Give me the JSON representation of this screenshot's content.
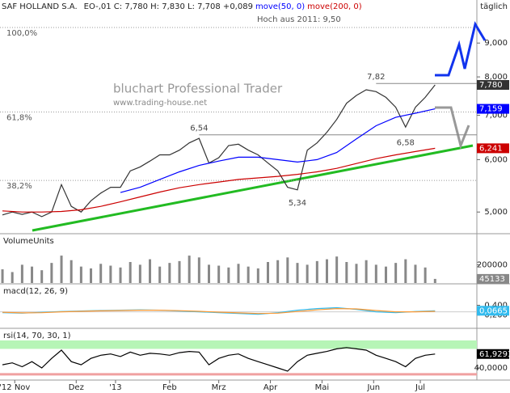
{
  "chart_data": [
    {
      "type": "line",
      "title": "SAF HOLLAND S.A.",
      "quote": "EO-,01 C: 7,780 H: 7,830 L: 7,708 +0,089",
      "period": "täglich",
      "subtitle": "Hoch aus 2011: 9,50",
      "watermark": "bluchart Professional Trader",
      "watermark_url": "www.trading-house.net",
      "log": true,
      "xlim": [
        -1,
        193
      ],
      "ylim": [
        4.65,
        10.05
      ],
      "yticks": [
        {
          "value": 9,
          "label": "9,000"
        },
        {
          "value": 8,
          "label": "8,000"
        },
        {
          "value": 7,
          "label": "7,000"
        },
        {
          "value": 6,
          "label": "6,000"
        },
        {
          "value": 5,
          "label": "5,000"
        }
      ],
      "levels": [
        {
          "value": 9.5,
          "label": "100,0%"
        },
        {
          "value": 7.08,
          "label": "61,8%"
        },
        {
          "value": 5.58,
          "label": "38,2%"
        }
      ],
      "annotations": [
        {
          "x": 152,
          "value": 7.82,
          "label": "7,82",
          "position": "above",
          "hline": true
        },
        {
          "x": 80,
          "value": 6.54,
          "label": "6,54",
          "position": "above",
          "hline": true
        },
        {
          "x": 164,
          "value": 6.58,
          "label": "6,58",
          "position": "below",
          "hline": false
        },
        {
          "x": 120,
          "value": 5.34,
          "label": "5,34",
          "position": "below",
          "hline": false
        }
      ],
      "series": [
        {
          "color": "#333333",
          "x": [
            0,
            4,
            8,
            12,
            16,
            20,
            24,
            28,
            32,
            36,
            40,
            44,
            48,
            52,
            56,
            60,
            64,
            68,
            72,
            76,
            80,
            84,
            88,
            92,
            96,
            100,
            104,
            108,
            112,
            116,
            120,
            124,
            128,
            132,
            136,
            140,
            144,
            148,
            152,
            156,
            160,
            164,
            168,
            172,
            176
          ],
          "values": [
            4.95,
            5.0,
            4.96,
            5.0,
            4.92,
            5.0,
            5.5,
            5.1,
            5.0,
            5.2,
            5.34,
            5.45,
            5.45,
            5.77,
            5.85,
            5.97,
            6.1,
            6.1,
            6.2,
            6.36,
            6.46,
            5.93,
            6.04,
            6.3,
            6.33,
            6.2,
            6.1,
            5.93,
            5.77,
            5.45,
            5.4,
            6.2,
            6.36,
            6.6,
            6.9,
            7.3,
            7.5,
            7.65,
            7.6,
            7.45,
            7.2,
            6.72,
            7.2,
            7.45,
            7.78
          ],
          "last": {
            "value": 7.78,
            "label": "7,780"
          }
        },
        {
          "name": "move(50, 0)",
          "color": "#0000ff",
          "x": [
            48,
            56,
            64,
            72,
            80,
            88,
            96,
            104,
            112,
            120,
            128,
            136,
            144,
            152,
            160,
            168,
            176
          ],
          "values": [
            5.35,
            5.45,
            5.6,
            5.75,
            5.88,
            5.97,
            6.05,
            6.05,
            6.0,
            5.95,
            6.0,
            6.15,
            6.45,
            6.75,
            6.95,
            7.05,
            7.159
          ],
          "last": {
            "value": 7.159,
            "label": "7,159"
          }
        },
        {
          "name": "move(200, 0)",
          "color": "#cc0000",
          "x": [
            0,
            8,
            16,
            24,
            32,
            40,
            48,
            56,
            64,
            72,
            80,
            88,
            96,
            104,
            112,
            120,
            128,
            136,
            144,
            152,
            160,
            168,
            176
          ],
          "values": [
            5.02,
            5.0,
            5.0,
            5.01,
            5.04,
            5.1,
            5.18,
            5.27,
            5.36,
            5.44,
            5.5,
            5.55,
            5.6,
            5.63,
            5.66,
            5.7,
            5.75,
            5.82,
            5.92,
            6.02,
            6.1,
            6.17,
            6.241
          ],
          "last": {
            "value": 6.241,
            "label": "6,241"
          }
        }
      ]
    },
    {
      "type": "bar",
      "title": "VolumeUnits",
      "xlim": [
        -1,
        193
      ],
      "ylim": [
        0,
        460000
      ],
      "yticks": [
        200000
      ],
      "series": [
        {
          "color": "#888888",
          "x": [
            0,
            4,
            8,
            12,
            16,
            20,
            24,
            28,
            32,
            36,
            40,
            44,
            48,
            52,
            56,
            60,
            64,
            68,
            72,
            76,
            80,
            84,
            88,
            92,
            96,
            100,
            104,
            108,
            112,
            116,
            120,
            124,
            128,
            132,
            136,
            140,
            144,
            148,
            152,
            156,
            160,
            164,
            168,
            172,
            176
          ],
          "values": [
            150000,
            120000,
            200000,
            180000,
            140000,
            220000,
            300000,
            250000,
            180000,
            160000,
            210000,
            190000,
            170000,
            230000,
            200000,
            260000,
            180000,
            220000,
            240000,
            300000,
            280000,
            200000,
            190000,
            170000,
            210000,
            180000,
            160000,
            230000,
            250000,
            280000,
            220000,
            200000,
            240000,
            260000,
            290000,
            230000,
            210000,
            250000,
            200000,
            180000,
            220000,
            260000,
            200000,
            170000,
            45133
          ],
          "last": {
            "value": 45133,
            "label": "45133"
          }
        }
      ]
    },
    {
      "type": "line",
      "title": "macd(12, 26, 9)",
      "xlim": [
        -1,
        193
      ],
      "ylim": [
        -0.95,
        1.65
      ],
      "yticks": [
        {
          "value": 0.4,
          "label": "0,400"
        },
        {
          "value": -0.2,
          "label": "-0,200"
        }
      ],
      "series": [
        {
          "color": "#33bbee",
          "x": [
            0,
            8,
            16,
            24,
            32,
            40,
            48,
            56,
            64,
            72,
            80,
            88,
            96,
            104,
            112,
            120,
            128,
            136,
            144,
            152,
            160,
            168,
            176
          ],
          "values": [
            -0.05,
            -0.08,
            -0.03,
            0.02,
            0.05,
            0.08,
            0.1,
            0.12,
            0.1,
            0.05,
            0,
            -0.05,
            -0.1,
            -0.15,
            -0.05,
            0.1,
            0.2,
            0.25,
            0.15,
            0,
            -0.05,
            0.02,
            0.0665
          ],
          "last": {
            "value": 0.0665,
            "label": "0,0665"
          }
        },
        {
          "color": "#ff9933",
          "x": [
            0,
            8,
            16,
            24,
            32,
            40,
            48,
            56,
            64,
            72,
            80,
            88,
            96,
            104,
            112,
            120,
            128,
            136,
            144,
            152,
            160,
            168,
            176
          ],
          "values": [
            -0.03,
            -0.06,
            -0.05,
            0,
            0.03,
            0.06,
            0.08,
            0.1,
            0.1,
            0.07,
            0.03,
            -0.02,
            -0.06,
            -0.1,
            -0.08,
            0.02,
            0.12,
            0.2,
            0.18,
            0.08,
            0,
            0,
            0.03
          ]
        }
      ]
    },
    {
      "type": "line",
      "title": "rsi(14, 70, 30, 1)",
      "xlim": [
        -1,
        193
      ],
      "ylim": [
        21,
        101
      ],
      "yticks": [
        {
          "value": 40,
          "label": "40,0000"
        }
      ],
      "overbought": 70,
      "oversold": 30,
      "xticks": [
        {
          "value": 5,
          "label": "'12 Nov"
        },
        {
          "value": 30,
          "label": "Dez"
        },
        {
          "value": 46,
          "label": "'13"
        },
        {
          "value": 68,
          "label": "Feb"
        },
        {
          "value": 88,
          "label": "Mrz"
        },
        {
          "value": 109,
          "label": "Apr"
        },
        {
          "value": 130,
          "label": "Mai"
        },
        {
          "value": 151,
          "label": "Jun"
        },
        {
          "value": 170,
          "label": "Jul"
        }
      ],
      "series": [
        {
          "color": "#000000",
          "x": [
            0,
            4,
            8,
            12,
            16,
            20,
            24,
            28,
            32,
            36,
            40,
            44,
            48,
            52,
            56,
            60,
            64,
            68,
            72,
            76,
            80,
            84,
            88,
            92,
            96,
            100,
            104,
            108,
            112,
            116,
            120,
            124,
            128,
            132,
            136,
            140,
            144,
            148,
            152,
            156,
            160,
            164,
            168,
            172,
            176
          ],
          "values": [
            45,
            48,
            42,
            50,
            40,
            55,
            68,
            50,
            45,
            55,
            60,
            62,
            58,
            65,
            60,
            63,
            62,
            60,
            64,
            66,
            65,
            45,
            55,
            60,
            62,
            55,
            50,
            45,
            40,
            35,
            50,
            60,
            63,
            66,
            70,
            72,
            70,
            68,
            60,
            55,
            50,
            42,
            55,
            60,
            61.9293
          ],
          "last": {
            "value": 61.9293,
            "label": "61,9293"
          }
        }
      ]
    }
  ]
}
